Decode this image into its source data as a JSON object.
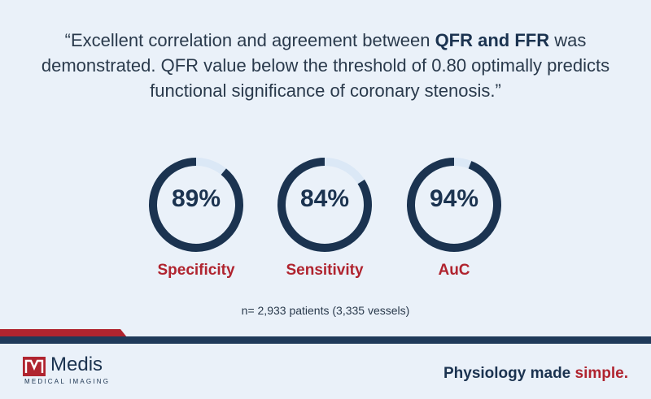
{
  "quote": {
    "part1": "“Excellent correlation and agreement between ",
    "bold": "QFR and FFR",
    "part2": " was demonstrated. QFR value below the threshold of 0.80 optimally predicts functional significance of coronary stenosis.”"
  },
  "gauges": [
    {
      "value_text": "89%",
      "percent": 89,
      "label": "Specificity"
    },
    {
      "value_text": "84%",
      "percent": 84,
      "label": "Sensitivity"
    },
    {
      "value_text": "94%",
      "percent": 94,
      "label": "AuC"
    }
  ],
  "note": "n= 2,933 patients (3,335 vessels)",
  "footer": {
    "logo_name": "Medis",
    "logo_sub": "MEDICAL IMAGING",
    "tagline_main": "Physiology made ",
    "tagline_accent": "simple."
  },
  "colors": {
    "background": "#eaf1f9",
    "navy": "#1b3350",
    "red": "#b0242f",
    "track": "#dbe8f6"
  }
}
